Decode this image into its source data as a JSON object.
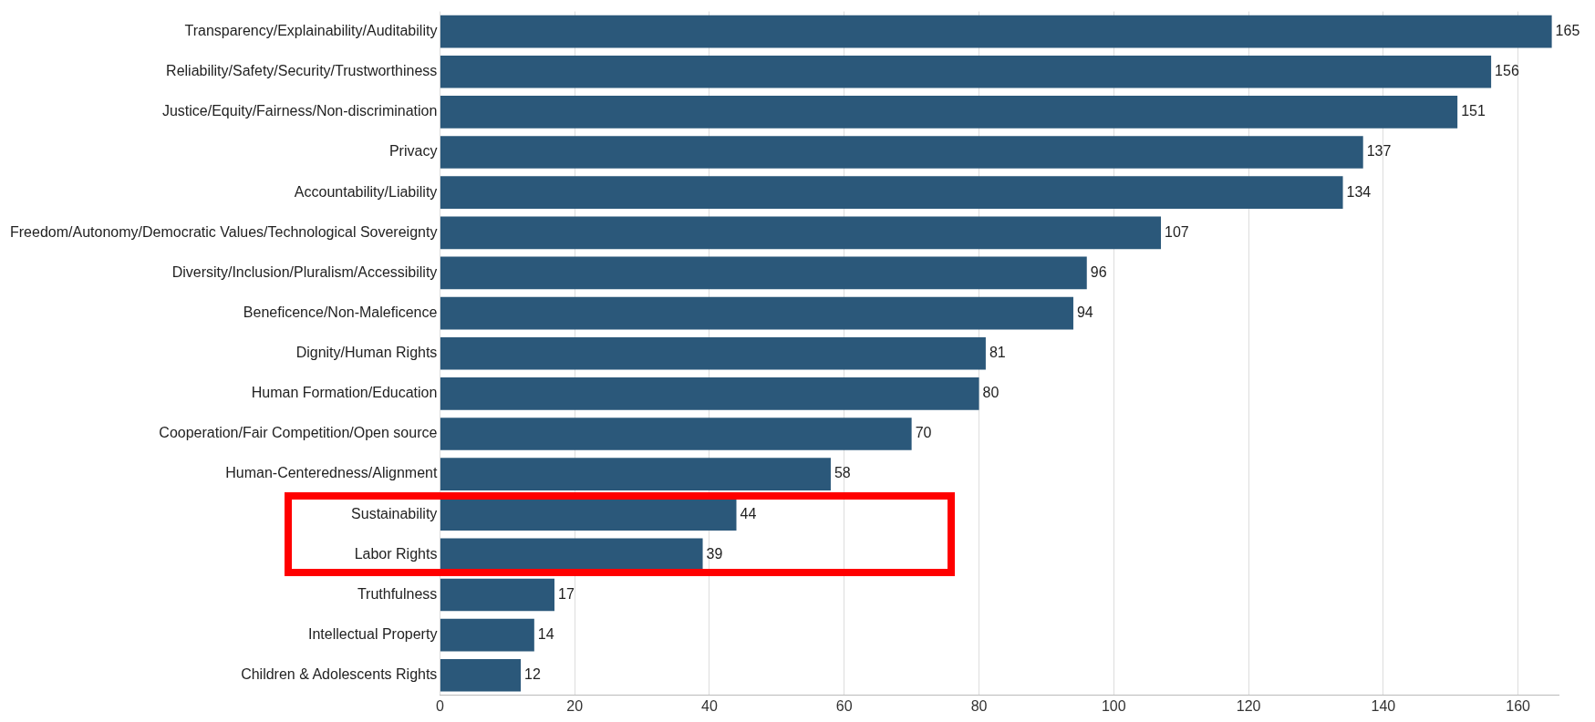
{
  "chart_data": {
    "type": "bar",
    "orientation": "horizontal",
    "categories": [
      "Transparency/Explainability/Auditability",
      "Reliability/Safety/Security/Trustworthiness",
      "Justice/Equity/Fairness/Non-discrimination",
      "Privacy",
      "Accountability/Liability",
      "Freedom/Autonomy/Democratic Values/Technological Sovereignty",
      "Diversity/Inclusion/Pluralism/Accessibility",
      "Beneficence/Non-Maleficence",
      "Dignity/Human Rights",
      "Human Formation/Education",
      "Cooperation/Fair Competition/Open source",
      "Human-Centeredness/Alignment",
      "Sustainability",
      "Labor Rights",
      "Truthfulness",
      "Intellectual Property",
      "Children & Adolescents Rights"
    ],
    "values": [
      165,
      156,
      151,
      137,
      134,
      107,
      96,
      94,
      81,
      80,
      70,
      58,
      44,
      39,
      17,
      14,
      12
    ],
    "color": "#2b587a",
    "xlim": [
      0,
      166
    ],
    "xticks": [
      0,
      20,
      40,
      60,
      80,
      100,
      120,
      140,
      160
    ],
    "grid": "x",
    "data_labels": true,
    "legend": false
  }
}
